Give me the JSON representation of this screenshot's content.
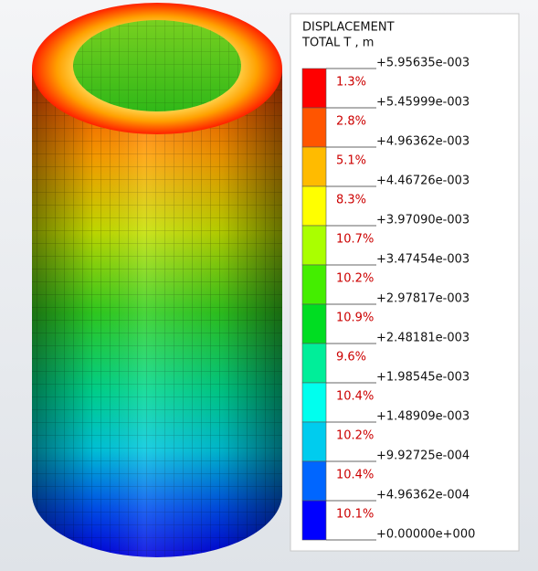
{
  "legend": {
    "title": [
      "DISPLACEMENT",
      "TOTAL T , m"
    ],
    "bands": [
      {
        "color": "#ff0000",
        "percent": "1.3%"
      },
      {
        "color": "#ff5500",
        "percent": "2.8%"
      },
      {
        "color": "#ffbb00",
        "percent": "5.1%"
      },
      {
        "color": "#ffff00",
        "percent": "8.3%"
      },
      {
        "color": "#aaff00",
        "percent": "10.7%"
      },
      {
        "color": "#44ee00",
        "percent": "10.2%"
      },
      {
        "color": "#00dd22",
        "percent": "10.9%"
      },
      {
        "color": "#00ee99",
        "percent": "9.6%"
      },
      {
        "color": "#00ffee",
        "percent": "10.4%"
      },
      {
        "color": "#00ccee",
        "percent": "10.2%"
      },
      {
        "color": "#0066ff",
        "percent": "10.4%"
      },
      {
        "color": "#0000ff",
        "percent": "10.1%"
      }
    ],
    "limits": [
      "+5.95635e-003",
      "+5.45999e-003",
      "+4.96362e-003",
      "+4.46726e-003",
      "+3.97090e-003",
      "+3.47454e-003",
      "+2.97817e-003",
      "+2.48181e-003",
      "+1.98545e-003",
      "+1.48909e-003",
      "+9.92725e-004",
      "+4.96362e-004",
      "+0.00000e+000"
    ]
  }
}
